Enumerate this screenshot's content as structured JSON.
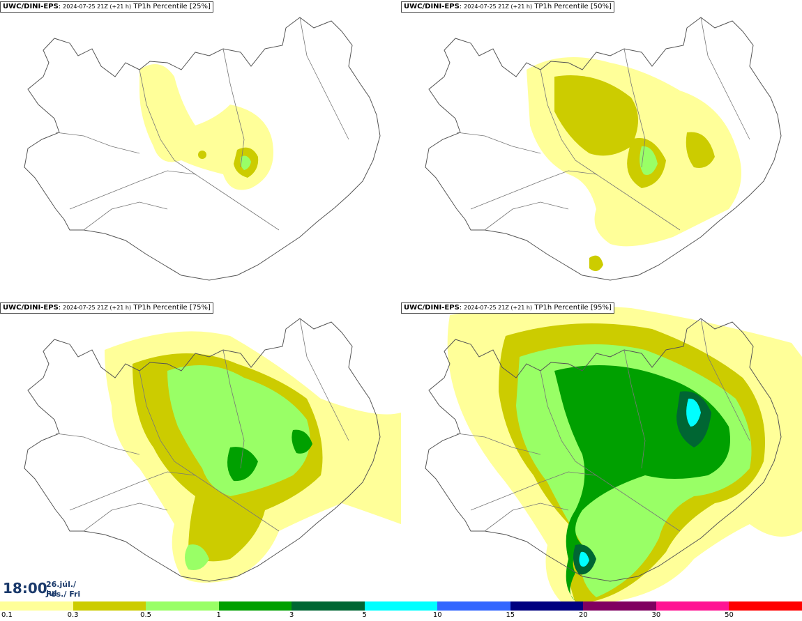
{
  "panels": [
    {
      "model": "UWC/DINI-EPS",
      "run": "2024-07-25 21Z (+21 h)",
      "field": "TP1h Percentile",
      "percentile": "[25%]"
    },
    {
      "model": "UWC/DINI-EPS",
      "run": "2024-07-25 21Z (+21 h)",
      "field": "TP1h Percentile",
      "percentile": "[50%]"
    },
    {
      "model": "UWC/DINI-EPS",
      "run": "2024-07-25 21Z (+21 h)",
      "field": "TP1h Percentile",
      "percentile": "[75%]"
    },
    {
      "model": "UWC/DINI-EPS",
      "run": "2024-07-25 21Z (+21 h)",
      "field": "TP1h Percentile",
      "percentile": "[95%]"
    }
  ],
  "valid_time": {
    "clock": "18:00",
    "date": "26.júl./ Jul",
    "weekday": "Fös./ Fri"
  },
  "legend": {
    "thresholds": [
      "0.1",
      "0.3",
      "0.5",
      "1",
      "3",
      "5",
      "10",
      "15",
      "20",
      "30",
      "50"
    ],
    "colors": [
      "#ffff99",
      "#cccc00",
      "#99ff66",
      "#00a000",
      "#006633",
      "#00ffff",
      "#3366ff",
      "#000080",
      "#800060",
      "#ff1493",
      "#ff0000"
    ]
  },
  "map_colors": {
    "land_outline": "#555555",
    "lvl1": "#ffff99",
    "lvl2": "#cccc00",
    "lvl3": "#99ff66",
    "lvl4": "#00a000",
    "lvl5": "#006633",
    "lvl6": "#00ffff"
  }
}
